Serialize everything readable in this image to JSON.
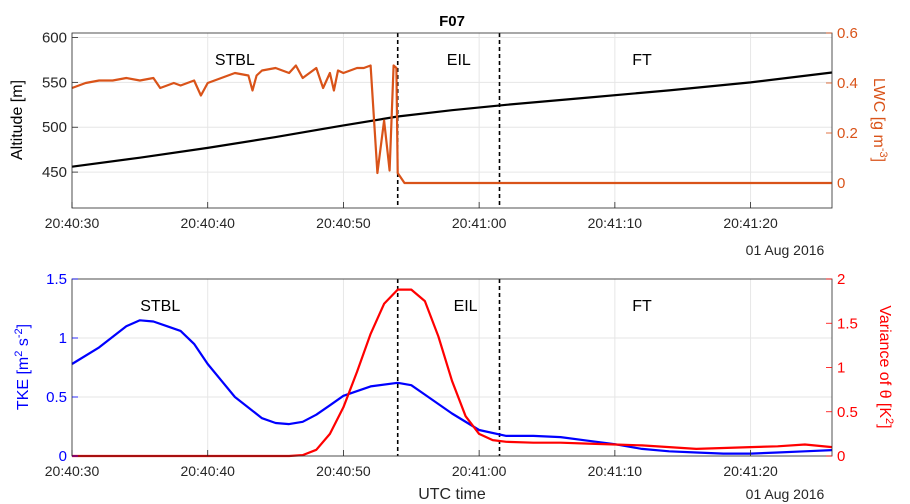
{
  "chart_data": [
    {
      "type": "line",
      "title": "F07",
      "xlabel": "",
      "x_ticks": [
        "20:40:30",
        "20:40:40",
        "20:40:50",
        "20:41:00",
        "20:41:10",
        "20:41:20"
      ],
      "date_label": "01 Aug 2016",
      "x_range_seconds": [
        0,
        56
      ],
      "ylabel_left": "Altitude [m]",
      "ylabel_right_base": "LWC [g m",
      "ylabel_right_sup": "-3",
      "ylabel_right_end": "]",
      "y_left_range": [
        410,
        605
      ],
      "y_left_ticks": [
        450,
        500,
        550,
        600
      ],
      "y_right_range": [
        -0.1,
        0.6
      ],
      "y_right_ticks": [
        0,
        0.2,
        0.4,
        0.6
      ],
      "grid": true,
      "region_labels": [
        {
          "text": "STBL",
          "t": 12
        },
        {
          "text": "EIL",
          "t": 28.5
        },
        {
          "text": "FT",
          "t": 42
        }
      ],
      "dividers_seconds": [
        24,
        31.5
      ],
      "series": [
        {
          "axis": "left",
          "color": "#000000",
          "t": [
            0,
            5,
            10,
            15,
            20,
            24,
            28,
            32,
            38,
            44,
            50,
            56
          ],
          "values": [
            456,
            466,
            477,
            489,
            502,
            512,
            519,
            525,
            533,
            541,
            550,
            561
          ]
        },
        {
          "axis": "right",
          "color": "#d95319",
          "t": [
            0,
            0.5,
            1,
            2,
            3,
            4,
            5,
            6,
            6.5,
            7,
            7.5,
            8,
            9,
            9.5,
            10,
            11,
            12,
            13,
            13.3,
            13.6,
            14,
            15,
            16,
            16.5,
            17,
            18,
            18.5,
            19,
            19.3,
            19.6,
            20,
            21,
            21.5,
            22,
            22.5,
            23,
            23.4,
            23.7,
            23.9,
            24,
            24.5,
            25,
            26,
            27,
            28,
            30,
            32,
            34,
            36,
            38,
            40,
            42,
            44,
            46,
            48,
            50,
            52,
            54,
            56
          ],
          "values": [
            0.38,
            0.39,
            0.4,
            0.41,
            0.41,
            0.42,
            0.41,
            0.42,
            0.38,
            0.39,
            0.4,
            0.39,
            0.41,
            0.35,
            0.4,
            0.42,
            0.44,
            0.43,
            0.37,
            0.43,
            0.45,
            0.46,
            0.44,
            0.47,
            0.42,
            0.46,
            0.38,
            0.44,
            0.37,
            0.45,
            0.44,
            0.46,
            0.46,
            0.47,
            0.04,
            0.25,
            0.05,
            0.47,
            0.46,
            0.04,
            0.0,
            0.0,
            0.0,
            0.0,
            0.0,
            0.0,
            0.0,
            0.0,
            0.0,
            0.0,
            0.0,
            0.0,
            0.0,
            0.0,
            0.0,
            0.0,
            0.0,
            0.0,
            0.0
          ]
        }
      ]
    },
    {
      "type": "line",
      "title": "",
      "xlabel": "UTC time",
      "x_ticks": [
        "20:40:30",
        "20:40:40",
        "20:40:50",
        "20:41:00",
        "20:41:10",
        "20:41:20"
      ],
      "date_label": "01 Aug 2016",
      "x_range_seconds": [
        0,
        56
      ],
      "ylabel_left_base": "TKE [m",
      "ylabel_left_sup1": "2",
      "ylabel_left_mid": " s",
      "ylabel_left_sup2": "-2",
      "ylabel_left_end": "]",
      "ylabel_right_base": "Variance of θ [K",
      "ylabel_right_sup": "2",
      "ylabel_right_end": "]",
      "y_left_range": [
        0,
        1.5
      ],
      "y_left_ticks": [
        0,
        0.5,
        1,
        1.5
      ],
      "y_right_range": [
        0,
        2
      ],
      "y_right_ticks": [
        0,
        0.5,
        1,
        1.5,
        2
      ],
      "grid": true,
      "region_labels": [
        {
          "text": "STBL",
          "t": 6.5
        },
        {
          "text": "EIL",
          "t": 29
        },
        {
          "text": "FT",
          "t": 42
        }
      ],
      "dividers_seconds": [
        24,
        31.5
      ],
      "series": [
        {
          "axis": "left",
          "color": "#0000ff",
          "t": [
            0,
            2,
            4,
            5,
            6,
            7,
            8,
            9,
            10,
            12,
            14,
            15,
            16,
            17,
            18,
            19,
            20,
            22,
            24,
            25,
            26,
            28,
            30,
            32,
            34,
            36,
            38,
            40,
            42,
            44,
            46,
            48,
            50,
            52,
            54,
            56
          ],
          "values": [
            0.78,
            0.92,
            1.1,
            1.15,
            1.14,
            1.1,
            1.06,
            0.95,
            0.78,
            0.5,
            0.32,
            0.28,
            0.27,
            0.29,
            0.35,
            0.43,
            0.51,
            0.59,
            0.62,
            0.6,
            0.52,
            0.36,
            0.22,
            0.17,
            0.17,
            0.16,
            0.13,
            0.1,
            0.06,
            0.04,
            0.03,
            0.02,
            0.02,
            0.03,
            0.04,
            0.05
          ]
        },
        {
          "axis": "right",
          "color": "#ff0000",
          "t": [
            0,
            10,
            16,
            17,
            18,
            19,
            20,
            21,
            22,
            23,
            24,
            25,
            26,
            27,
            28,
            29,
            30,
            31,
            32,
            34,
            36,
            38,
            40,
            42,
            44,
            46,
            48,
            50,
            52,
            54,
            56
          ],
          "values": [
            0,
            0,
            0,
            0.01,
            0.07,
            0.25,
            0.55,
            0.95,
            1.38,
            1.72,
            1.88,
            1.88,
            1.75,
            1.35,
            0.85,
            0.45,
            0.25,
            0.18,
            0.16,
            0.15,
            0.15,
            0.14,
            0.13,
            0.12,
            0.1,
            0.08,
            0.09,
            0.1,
            0.11,
            0.13,
            0.1
          ]
        }
      ]
    }
  ]
}
